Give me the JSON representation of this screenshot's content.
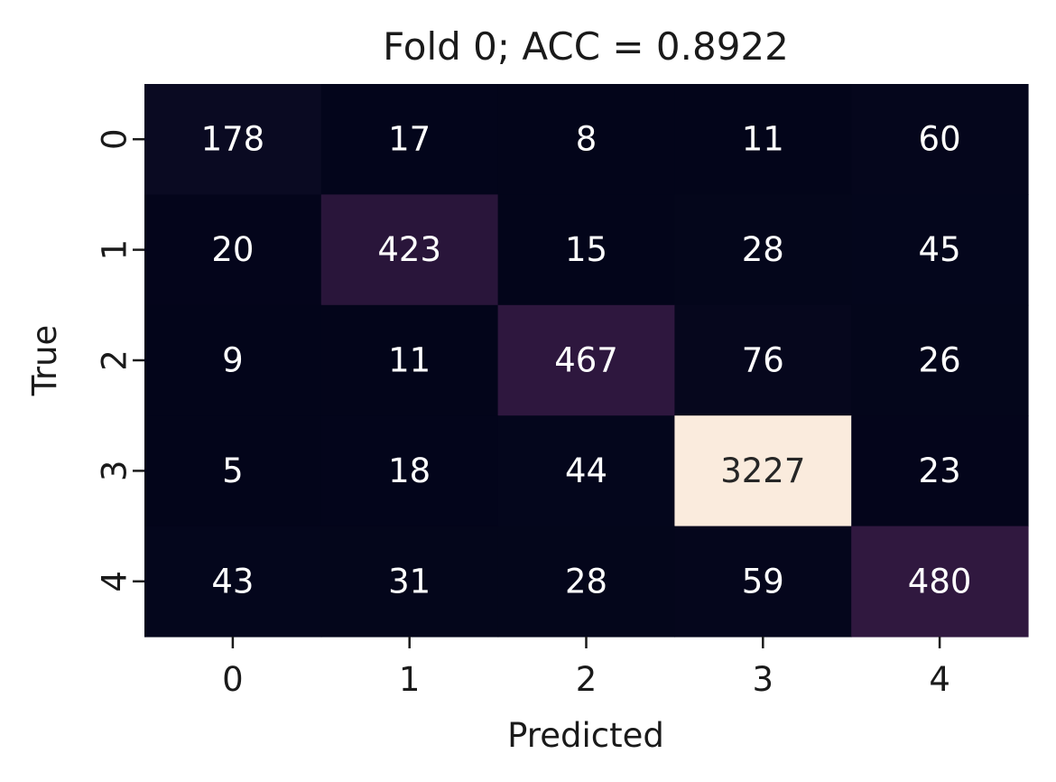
{
  "chart_data": {
    "type": "heatmap",
    "title": "Fold 0; ACC = 0.8922",
    "xlabel": "Predicted",
    "ylabel": "True",
    "x_tick_labels": [
      "0",
      "1",
      "2",
      "3",
      "4"
    ],
    "y_tick_labels": [
      "0",
      "1",
      "2",
      "3",
      "4"
    ],
    "matrix": [
      [
        178,
        17,
        8,
        11,
        60
      ],
      [
        20,
        423,
        15,
        28,
        45
      ],
      [
        9,
        11,
        467,
        76,
        26
      ],
      [
        5,
        18,
        44,
        3227,
        23
      ],
      [
        43,
        31,
        28,
        59,
        480
      ]
    ],
    "colorbar": false,
    "colormap": "rocket",
    "colors": {
      "low": "#03051a",
      "mid": "#3b1a4a",
      "high": "#faebdd",
      "text_on_dark": "#ffffff",
      "text_on_light": "#262626"
    }
  }
}
